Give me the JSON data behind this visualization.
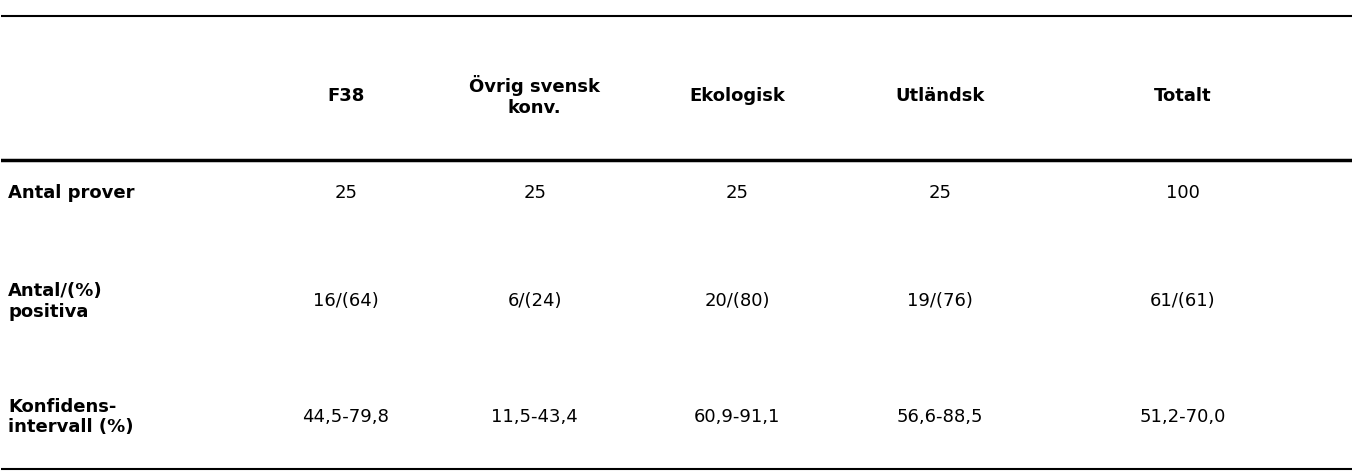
{
  "col_headers": [
    "F38",
    "Övrig svensk\nkonv.",
    "Ekologisk",
    "Utländsk",
    "Totalt"
  ],
  "row_headers": [
    "Antal prover",
    "Antal/(%)\npositiva",
    "Konfidens-\nintervall (%)"
  ],
  "cell_data": [
    [
      "25",
      "25",
      "25",
      "25",
      "100"
    ],
    [
      "16/(64)",
      "6/(24)",
      "20/(80)",
      "19/(76)",
      "61/(61)"
    ],
    [
      "44,5-79,8",
      "11,5-43,4",
      "60,9-91,1",
      "56,6-88,5",
      "51,2-70,0"
    ]
  ],
  "background_color": "#ffffff",
  "header_font_size": 13,
  "cell_font_size": 13,
  "row_header_font_size": 13,
  "line_color": "#000000"
}
